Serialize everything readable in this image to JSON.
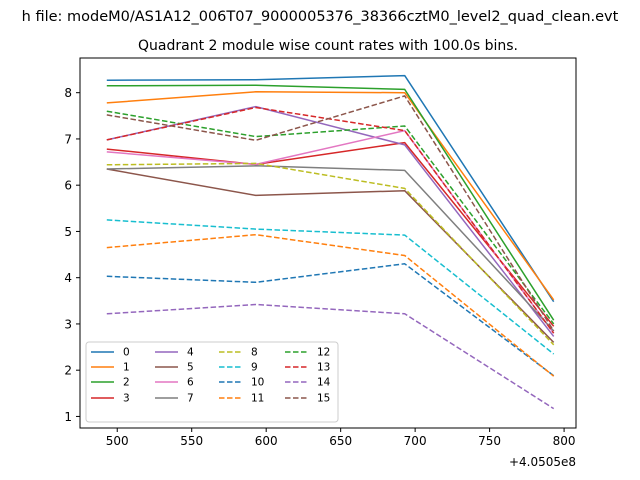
{
  "suptitle": "h file: modeM0/AS1A12_006T07_9000005376_38366cztM0_level2_quad_clean.evt",
  "chart_data": {
    "type": "line",
    "title": "Quadrant 2 module wise count rates with 100.0s bins.",
    "xlabel": "",
    "ylabel": "",
    "x_offset_label": "+4.0505e8",
    "x": [
      493,
      593,
      693,
      793
    ],
    "xlim": [
      475,
      808
    ],
    "ylim": [
      0.75,
      8.75
    ],
    "xticks": [
      500,
      550,
      600,
      650,
      700,
      750,
      800
    ],
    "yticks": [
      1,
      2,
      3,
      4,
      5,
      6,
      7,
      8
    ],
    "grid": false,
    "legend_position": "lower-left",
    "legend_columns": 4,
    "series": [
      {
        "name": "0",
        "color": "#1f77b4",
        "dashed": false,
        "values": [
          8.27,
          8.28,
          8.37,
          3.48
        ]
      },
      {
        "name": "1",
        "color": "#ff7f0e",
        "dashed": false,
        "values": [
          7.78,
          8.02,
          8.0,
          3.52
        ]
      },
      {
        "name": "2",
        "color": "#2ca02c",
        "dashed": false,
        "values": [
          8.15,
          8.16,
          8.07,
          3.08
        ]
      },
      {
        "name": "3",
        "color": "#d62728",
        "dashed": false,
        "values": [
          6.78,
          6.45,
          6.92,
          2.95
        ]
      },
      {
        "name": "4",
        "color": "#9467bd",
        "dashed": false,
        "values": [
          6.98,
          7.7,
          6.87,
          2.73
        ]
      },
      {
        "name": "5",
        "color": "#8c564b",
        "dashed": false,
        "values": [
          6.35,
          5.78,
          5.88,
          2.6
        ]
      },
      {
        "name": "6",
        "color": "#e377c2",
        "dashed": false,
        "values": [
          6.72,
          6.45,
          7.18,
          2.8
        ]
      },
      {
        "name": "7",
        "color": "#7f7f7f",
        "dashed": false,
        "values": [
          6.35,
          6.42,
          6.32,
          2.85
        ]
      },
      {
        "name": "8",
        "color": "#bcbd22",
        "dashed": true,
        "values": [
          6.44,
          6.47,
          5.93,
          2.55
        ]
      },
      {
        "name": "9",
        "color": "#17becf",
        "dashed": true,
        "values": [
          5.25,
          5.05,
          4.92,
          2.35
        ]
      },
      {
        "name": "10",
        "color": "#1f77b4",
        "dashed": true,
        "values": [
          4.03,
          3.9,
          4.3,
          1.88
        ]
      },
      {
        "name": "11",
        "color": "#ff7f0e",
        "dashed": true,
        "values": [
          4.65,
          4.93,
          4.48,
          1.87
        ]
      },
      {
        "name": "12",
        "color": "#2ca02c",
        "dashed": true,
        "values": [
          7.6,
          7.05,
          7.28,
          3.0
        ]
      },
      {
        "name": "13",
        "color": "#d62728",
        "dashed": true,
        "values": [
          6.98,
          7.68,
          7.18,
          2.8
        ]
      },
      {
        "name": "14",
        "color": "#9467bd",
        "dashed": true,
        "values": [
          3.22,
          3.42,
          3.22,
          1.17
        ]
      },
      {
        "name": "15",
        "color": "#8c564b",
        "dashed": true,
        "values": [
          7.52,
          6.97,
          7.93,
          2.85
        ]
      }
    ]
  }
}
